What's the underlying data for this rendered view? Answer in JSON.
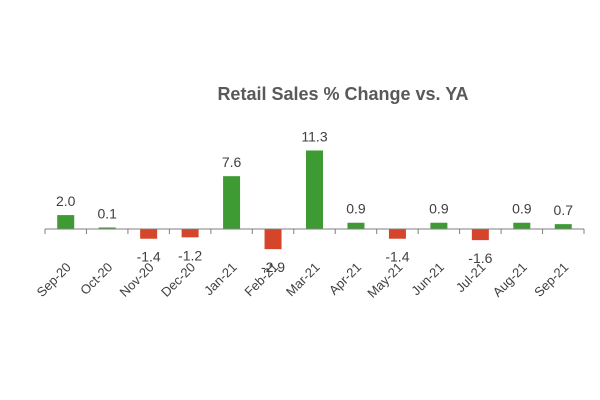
{
  "chart_data": {
    "type": "bar",
    "title": "Retail Sales % Change vs. YA",
    "xlabel": "",
    "ylabel": "",
    "categories": [
      "Sep-20",
      "Oct-20",
      "Nov-20",
      "Dec-20",
      "Jan-21",
      "Feb-21",
      "Mar-21",
      "Apr-21",
      "May-21",
      "Jun-21",
      "Jul-21",
      "Aug-21",
      "Sep-21"
    ],
    "values": [
      2.0,
      0.1,
      -1.4,
      -1.2,
      7.6,
      -2.9,
      11.3,
      0.9,
      -1.4,
      0.9,
      -1.6,
      0.9,
      0.7
    ],
    "value_labels": [
      "2.0",
      "0.1",
      "-1.4",
      "-1.2",
      "7.6",
      "-2.9",
      "11.3",
      "0.9",
      "-1.4",
      "0.9",
      "-1.6",
      "0.9",
      "0.7"
    ],
    "positive_color": "#3e9b34",
    "negative_color": "#d5452b",
    "grid": false,
    "legend": "none"
  }
}
